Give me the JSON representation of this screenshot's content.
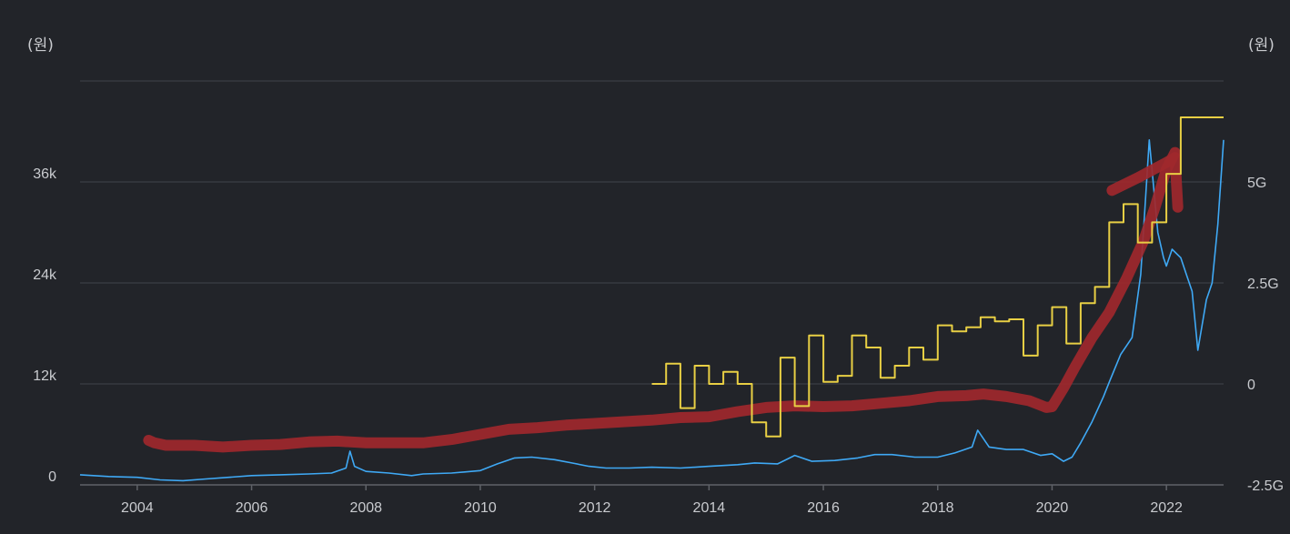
{
  "chart_data": {
    "type": "line",
    "left_unit": "(원)",
    "right_unit": "(원)",
    "x_range": [
      2003.0,
      2023.0
    ],
    "x_ticks": [
      "2004",
      "2006",
      "2008",
      "2010",
      "2012",
      "2014",
      "2016",
      "2018",
      "2020",
      "2022"
    ],
    "y_left": {
      "range": [
        0,
        48000
      ],
      "ticks": [
        0,
        12000,
        24000,
        36000
      ],
      "tick_labels": [
        "0",
        "12k",
        "24k",
        "36k"
      ]
    },
    "y_right": {
      "range": [
        -2500000000,
        7500000000
      ],
      "ticks": [
        -2500000000,
        0,
        2500000000,
        5000000000
      ],
      "tick_labels": [
        "-2.5G",
        "0",
        "2.5G",
        "5G"
      ]
    },
    "legend": "none",
    "grid": "horizontal",
    "series": [
      {
        "axis": "left",
        "style": "line",
        "color": "#3fa9f5",
        "x": [
          2003.0,
          2003.5,
          2004.0,
          2004.4,
          2004.8,
          2005.2,
          2005.6,
          2006.0,
          2006.5,
          2007.0,
          2007.4,
          2007.65,
          2007.72,
          2007.8,
          2008.0,
          2008.4,
          2008.8,
          2009.0,
          2009.5,
          2010.0,
          2010.3,
          2010.6,
          2010.9,
          2011.3,
          2011.6,
          2011.9,
          2012.2,
          2012.6,
          2013.0,
          2013.5,
          2014.0,
          2014.5,
          2014.8,
          2015.2,
          2015.5,
          2015.8,
          2016.2,
          2016.6,
          2016.9,
          2017.2,
          2017.6,
          2018.0,
          2018.3,
          2018.6,
          2018.7,
          2018.9,
          2019.2,
          2019.5,
          2019.8,
          2020.0,
          2020.2,
          2020.35,
          2020.5,
          2020.7,
          2020.9,
          2021.0,
          2021.2,
          2021.4,
          2021.55,
          2021.7,
          2021.85,
          2021.95,
          2022.0,
          2022.1,
          2022.25,
          2022.35,
          2022.45,
          2022.55,
          2022.7,
          2022.8,
          2022.9,
          2023.0
        ],
        "y": [
          1200,
          1000,
          900,
          600,
          500,
          700,
          900,
          1100,
          1200,
          1300,
          1400,
          2000,
          4000,
          2200,
          1600,
          1400,
          1100,
          1300,
          1400,
          1700,
          2500,
          3200,
          3300,
          3000,
          2600,
          2200,
          2000,
          2000,
          2100,
          2000,
          2200,
          2400,
          2600,
          2500,
          3500,
          2800,
          2900,
          3200,
          3600,
          3600,
          3300,
          3300,
          3800,
          4500,
          6500,
          4500,
          4200,
          4200,
          3500,
          3700,
          2800,
          3300,
          5000,
          7500,
          10500,
          12200,
          15500,
          17500,
          25000,
          41000,
          30000,
          27000,
          26000,
          28000,
          27000,
          25000,
          23000,
          16000,
          22000,
          24000,
          31000,
          41000
        ]
      },
      {
        "axis": "right",
        "style": "step",
        "color": "#e8cf44",
        "x": [
          2013.0,
          2013.25,
          2013.5,
          2013.75,
          2014.0,
          2014.25,
          2014.5,
          2014.75,
          2015.0,
          2015.25,
          2015.5,
          2015.75,
          2016.0,
          2016.25,
          2016.5,
          2016.75,
          2017.0,
          2017.25,
          2017.5,
          2017.75,
          2018.0,
          2018.25,
          2018.5,
          2018.75,
          2019.0,
          2019.25,
          2019.5,
          2019.75,
          2020.0,
          2020.25,
          2020.5,
          2020.75,
          2021.0,
          2021.25,
          2021.5,
          2021.75,
          2022.0,
          2022.25,
          2022.5,
          2022.75
        ],
        "y": [
          0.0,
          0.5,
          -0.6,
          0.45,
          0.0,
          0.3,
          0.0,
          -0.95,
          -1.3,
          0.65,
          -0.55,
          1.2,
          0.05,
          0.2,
          1.2,
          0.9,
          0.15,
          0.45,
          0.9,
          0.6,
          1.45,
          1.3,
          1.4,
          1.65,
          1.55,
          1.6,
          0.7,
          1.45,
          1.9,
          1.0,
          2.0,
          2.4,
          4.0,
          4.45,
          3.5,
          4.0,
          5.2,
          6.6,
          6.6,
          6.6
        ]
      },
      {
        "axis": "left",
        "style": "line",
        "color": "#a0282c",
        "x": [
          2004.2,
          2004.3,
          2004.5,
          2005.0,
          2005.5,
          2006.0,
          2006.5,
          2007.0,
          2007.5,
          2008.0,
          2008.5,
          2009.0,
          2009.5,
          2010.0,
          2010.5,
          2011.0,
          2011.5,
          2012.0,
          2012.5,
          2013.0,
          2013.5,
          2014.0,
          2014.5,
          2015.0,
          2015.5,
          2016.0,
          2016.5,
          2017.0,
          2017.5,
          2018.0,
          2018.5,
          2018.8,
          2019.2,
          2019.6,
          2019.9,
          2020.0,
          2020.2,
          2020.4,
          2020.7,
          2021.0,
          2021.3,
          2021.6,
          2021.8,
          2022.0,
          2022.15
        ],
        "y": [
          5300,
          5000,
          4700,
          4700,
          4500,
          4700,
          4800,
          5100,
          5200,
          5000,
          5000,
          5000,
          5400,
          6000,
          6600,
          6800,
          7100,
          7300,
          7500,
          7700,
          8000,
          8100,
          8700,
          9200,
          9400,
          9300,
          9400,
          9700,
          10000,
          10500,
          10600,
          10800,
          10500,
          10000,
          9200,
          9300,
          11500,
          14000,
          17500,
          20500,
          24500,
          29000,
          33000,
          37500,
          39500
        ]
      },
      {
        "axis": "left",
        "style": "line",
        "color": "#a0282c",
        "x": [
          2021.05,
          2021.5,
          2022.0,
          2022.15,
          2022.2
        ],
        "y": [
          35000,
          36500,
          38300,
          38900,
          33000
        ]
      }
    ]
  }
}
